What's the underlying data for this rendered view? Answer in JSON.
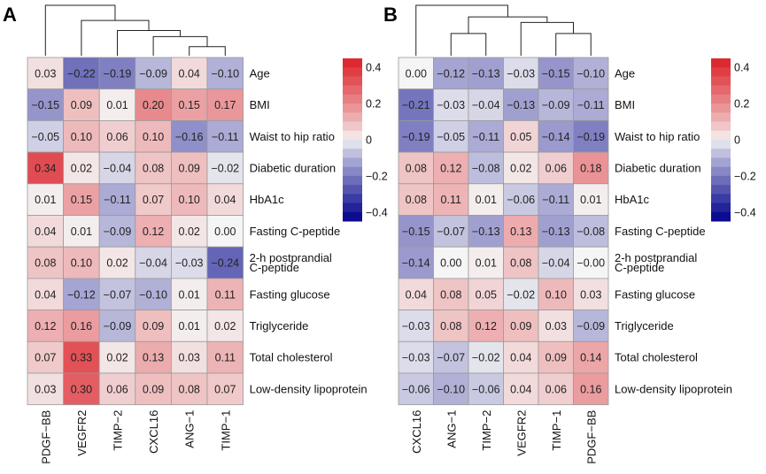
{
  "chart_data": [
    {
      "type": "heatmap",
      "panel_label": "A",
      "columns": [
        "PDGF−BB",
        "VEGFR2",
        "TIMP−2",
        "CXCL16",
        "ANG−1",
        "TIMP−1"
      ],
      "rows": [
        "Age",
        "BMI",
        "Waist to hip ratio",
        "Diabetic duration",
        "HbA1c",
        "Fasting C-peptide",
        "2-h postprandial C-peptide",
        "Fasting glucose",
        "Triglyceride",
        "Total cholesterol",
        "Low-density lipoprotein"
      ],
      "row_label_lines": [
        [
          "Age"
        ],
        [
          "BMI"
        ],
        [
          "Waist to hip ratio"
        ],
        [
          "Diabetic duration"
        ],
        [
          "HbA1c"
        ],
        [
          "Fasting C-peptide"
        ],
        [
          "2-h postprandial",
          "C-peptide"
        ],
        [
          "Fasting glucose"
        ],
        [
          "Triglyceride"
        ],
        [
          "Total cholesterol"
        ],
        [
          "Low-density lipoprotein"
        ]
      ],
      "value_labels": [
        [
          "0.03",
          "−0.22",
          "−0.19",
          "−0.09",
          "0.04",
          "−0.10"
        ],
        [
          "−0.15",
          "0.09",
          "0.01",
          "0.20",
          "0.15",
          "0.17"
        ],
        [
          "−0.05",
          "0.10",
          "0.06",
          "0.10",
          "−0.16",
          "−0.11"
        ],
        [
          "0.34",
          "0.02",
          "−0.04",
          "0.08",
          "0.09",
          "−0.02"
        ],
        [
          "0.01",
          "0.15",
          "−0.11",
          "0.07",
          "0.10",
          "0.04"
        ],
        [
          "0.04",
          "0.01",
          "−0.09",
          "0.12",
          "0.02",
          "0.00"
        ],
        [
          "0.08",
          "0.10",
          "0.02",
          "−0.04",
          "−0.03",
          "−0.24"
        ],
        [
          "0.04",
          "−0.12",
          "−0.07",
          "−0.10",
          "0.01",
          "0.11"
        ],
        [
          "0.12",
          "0.16",
          "−0.09",
          "0.09",
          "0.01",
          "0.02"
        ],
        [
          "0.07",
          "0.33",
          "0.02",
          "0.13",
          "0.03",
          "0.11"
        ],
        [
          "0.03",
          "0.30",
          "0.06",
          "0.09",
          "0.08",
          "0.07"
        ]
      ],
      "values": [
        [
          0.03,
          -0.22,
          -0.19,
          -0.09,
          0.04,
          -0.1
        ],
        [
          -0.15,
          0.09,
          0.01,
          0.2,
          0.15,
          0.17
        ],
        [
          -0.05,
          0.1,
          0.06,
          0.1,
          -0.16,
          -0.11
        ],
        [
          0.34,
          0.02,
          -0.04,
          0.08,
          0.09,
          -0.02
        ],
        [
          0.01,
          0.15,
          -0.11,
          0.07,
          0.1,
          0.04
        ],
        [
          0.04,
          0.01,
          -0.09,
          0.12,
          0.02,
          0.0
        ],
        [
          0.08,
          0.1,
          0.02,
          -0.04,
          -0.03,
          -0.24
        ],
        [
          0.04,
          -0.12,
          -0.07,
          -0.1,
          0.01,
          0.11
        ],
        [
          0.12,
          0.16,
          -0.09,
          0.09,
          0.01,
          0.02
        ],
        [
          0.07,
          0.33,
          0.02,
          0.13,
          0.03,
          0.11
        ],
        [
          0.03,
          0.3,
          0.06,
          0.09,
          0.08,
          0.07
        ]
      ],
      "dendrogram": "((PDGF−BB,(VEGFR2,(TIMP−2,(CXCL16,(ANG−1,TIMP−1))))))",
      "color_scale": {
        "min": -0.45,
        "max": 0.45,
        "low_color": "#00008B",
        "mid_color": "#F5F5F5",
        "high_color": "#DC1F26"
      },
      "legend_ticks": [
        0.4,
        0.2,
        0,
        -0.2,
        -0.4
      ],
      "legend_tick_labels": [
        "0.4",
        "0.2",
        "0",
        "−0.2",
        "−0.4"
      ]
    },
    {
      "type": "heatmap",
      "panel_label": "B",
      "columns": [
        "CXCL16",
        "ANG−1",
        "TIMP−2",
        "VEGFR2",
        "TIMP−1",
        "PDGF−BB"
      ],
      "rows": [
        "Age",
        "BMI",
        "Waist to hip ratio",
        "Diabetic duration",
        "HbA1c",
        "Fasting C-peptide",
        "2-h postprandial C-peptide",
        "Fasting glucose",
        "Triglyceride",
        "Total cholesterol",
        "Low-density lipoprotein"
      ],
      "row_label_lines": [
        [
          "Age"
        ],
        [
          "BMI"
        ],
        [
          "Waist to hip ratio"
        ],
        [
          "Diabetic duration"
        ],
        [
          "HbA1c"
        ],
        [
          "Fasting C-peptide"
        ],
        [
          "2-h postprandial",
          "C-peptide"
        ],
        [
          "Fasting glucose"
        ],
        [
          "Triglyceride"
        ],
        [
          "Total cholesterol"
        ],
        [
          "Low-density lipoprotein"
        ]
      ],
      "value_labels": [
        [
          "0.00",
          "−0.12",
          "−0.13",
          "−0.03",
          "−0.15",
          "−0.10"
        ],
        [
          "−0.21",
          "−0.03",
          "−0.04",
          "−0.13",
          "−0.09",
          "−0.11"
        ],
        [
          "−0.19",
          "−0.05",
          "−0.11",
          "0.05",
          "−0.14",
          "−0.19"
        ],
        [
          "0.08",
          "0.12",
          "−0.08",
          "0.02",
          "0.06",
          "0.18"
        ],
        [
          "0.08",
          "0.11",
          "0.01",
          "−0.06",
          "−0.11",
          "0.01"
        ],
        [
          "−0.15",
          "−0.07",
          "−0.13",
          "0.13",
          "−0.13",
          "−0.08"
        ],
        [
          "−0.14",
          "0.00",
          "0.01",
          "0.08",
          "−0.04",
          "−0.00"
        ],
        [
          "0.04",
          "0.08",
          "0.05",
          "−0.02",
          "0.10",
          "0.03"
        ],
        [
          "−0.03",
          "0.08",
          "0.12",
          "0.09",
          "0.03",
          "−0.09"
        ],
        [
          "−0.03",
          "−0.07",
          "−0.02",
          "0.04",
          "0.09",
          "0.14"
        ],
        [
          "−0.06",
          "−0.10",
          "−0.06",
          "0.04",
          "0.06",
          "0.16"
        ]
      ],
      "values": [
        [
          0.0,
          -0.12,
          -0.13,
          -0.03,
          -0.15,
          -0.1
        ],
        [
          -0.21,
          -0.03,
          -0.04,
          -0.13,
          -0.09,
          -0.11
        ],
        [
          -0.19,
          -0.05,
          -0.11,
          0.05,
          -0.14,
          -0.19
        ],
        [
          0.08,
          0.12,
          -0.08,
          0.02,
          0.06,
          0.18
        ],
        [
          0.08,
          0.11,
          0.01,
          -0.06,
          -0.11,
          0.01
        ],
        [
          -0.15,
          -0.07,
          -0.13,
          0.13,
          -0.13,
          -0.08
        ],
        [
          -0.14,
          0.0,
          0.01,
          0.08,
          -0.04,
          -0.0
        ],
        [
          0.04,
          0.08,
          0.05,
          -0.02,
          0.1,
          0.03
        ],
        [
          -0.03,
          0.08,
          0.12,
          0.09,
          0.03,
          -0.09
        ],
        [
          -0.03,
          -0.07,
          -0.02,
          0.04,
          0.09,
          0.14
        ],
        [
          -0.06,
          -0.1,
          -0.06,
          0.04,
          0.06,
          0.16
        ]
      ],
      "dendrogram": "((CXCL16,((ANG−1,TIMP−2),(VEGFR2,(TIMP−1,PDGF−BB)))))",
      "color_scale": {
        "min": -0.45,
        "max": 0.45,
        "low_color": "#00008B",
        "mid_color": "#F5F5F5",
        "high_color": "#DC1F26"
      },
      "legend_ticks": [
        0.4,
        0.2,
        0,
        -0.2,
        -0.4
      ],
      "legend_tick_labels": [
        "0.4",
        "0.2",
        "0",
        "−0.2",
        "−0.4"
      ]
    }
  ]
}
